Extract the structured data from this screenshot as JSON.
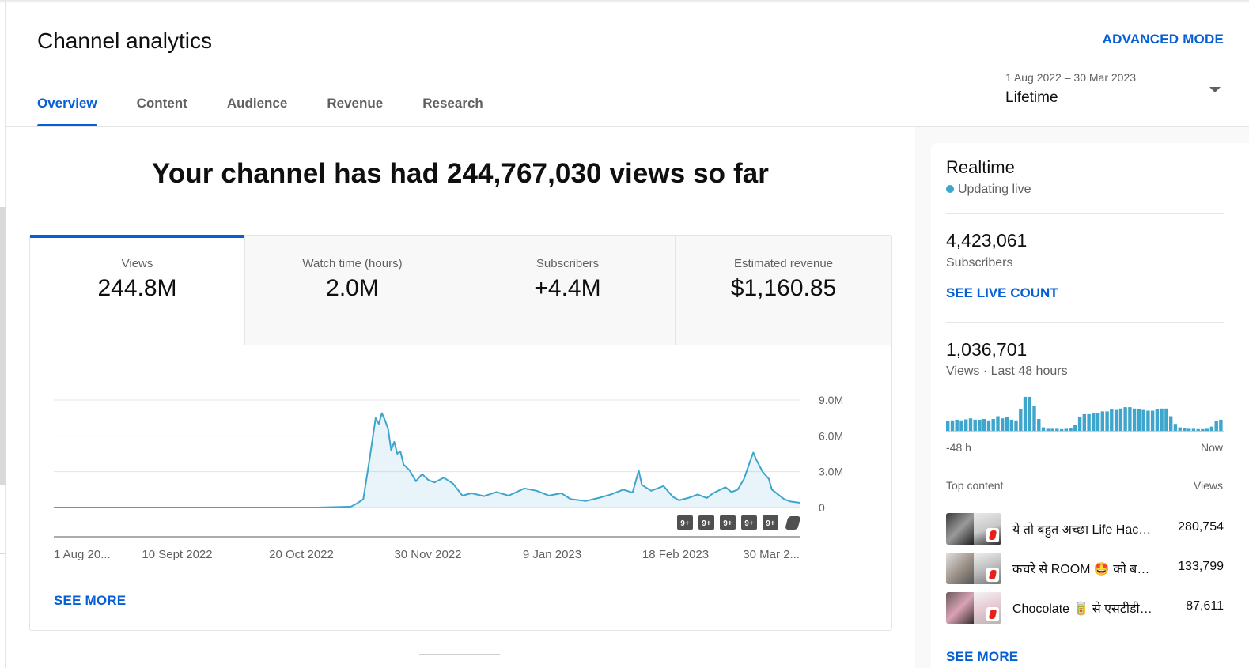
{
  "page": {
    "title": "Channel analytics",
    "advanced_mode": "ADVANCED MODE"
  },
  "tabs": [
    "Overview",
    "Content",
    "Audience",
    "Revenue",
    "Research"
  ],
  "date_range": {
    "range": "1 Aug 2022 – 30 Mar 2023",
    "label": "Lifetime"
  },
  "headline": "Your channel has had 244,767,030 views so far",
  "metrics": [
    {
      "label": "Views",
      "value": "244.8M"
    },
    {
      "label": "Watch time (hours)",
      "value": "2.0M"
    },
    {
      "label": "Subscribers",
      "value": "+4.4M"
    },
    {
      "label": "Estimated revenue",
      "value": "$1,160.85"
    }
  ],
  "chart_data": {
    "type": "area",
    "title": "",
    "ylabel": "",
    "xlabel": "",
    "ylim": [
      0,
      9000000
    ],
    "y_ticks": [
      "9.0M",
      "6.0M",
      "3.0M",
      "0"
    ],
    "x_ticks": [
      "1 Aug 20...",
      "10 Sept 2022",
      "20 Oct 2022",
      "30 Nov 2022",
      "9 Jan 2023",
      "18 Feb 2023",
      "30 Mar 2..."
    ],
    "x_range": [
      "2022-08-01",
      "2023-03-30"
    ],
    "grid": true,
    "color": "#3ea6cc",
    "series": [
      {
        "points": [
          [
            "2022-08-01",
            0
          ],
          [
            "2022-10-25",
            0
          ],
          [
            "2022-10-30",
            30000
          ],
          [
            "2022-11-05",
            70000
          ],
          [
            "2022-11-07",
            350000
          ],
          [
            "2022-11-09",
            700000
          ],
          [
            "2022-11-11",
            4000000
          ],
          [
            "2022-11-13",
            7500000
          ],
          [
            "2022-11-14",
            7000000
          ],
          [
            "2022-11-15",
            7900000
          ],
          [
            "2022-11-16",
            7300000
          ],
          [
            "2022-11-17",
            6600000
          ],
          [
            "2022-11-18",
            4800000
          ],
          [
            "2022-11-19",
            5500000
          ],
          [
            "2022-11-20",
            4500000
          ],
          [
            "2022-11-21",
            4700000
          ],
          [
            "2022-11-22",
            3600000
          ],
          [
            "2022-11-24",
            3100000
          ],
          [
            "2022-11-26",
            2200000
          ],
          [
            "2022-11-28",
            2800000
          ],
          [
            "2022-11-30",
            2300000
          ],
          [
            "2022-12-02",
            2100000
          ],
          [
            "2022-12-05",
            2500000
          ],
          [
            "2022-12-08",
            2000000
          ],
          [
            "2022-12-11",
            1000000
          ],
          [
            "2022-12-14",
            1200000
          ],
          [
            "2022-12-18",
            950000
          ],
          [
            "2022-12-22",
            1300000
          ],
          [
            "2022-12-26",
            1000000
          ],
          [
            "2022-12-31",
            1600000
          ],
          [
            "2023-01-04",
            1400000
          ],
          [
            "2023-01-08",
            1000000
          ],
          [
            "2023-01-12",
            1200000
          ],
          [
            "2023-01-15",
            700000
          ],
          [
            "2023-01-20",
            550000
          ],
          [
            "2023-01-24",
            800000
          ],
          [
            "2023-01-28",
            1100000
          ],
          [
            "2023-02-01",
            1500000
          ],
          [
            "2023-02-04",
            1250000
          ],
          [
            "2023-02-06",
            3100000
          ],
          [
            "2023-02-07",
            1900000
          ],
          [
            "2023-02-10",
            1400000
          ],
          [
            "2023-02-14",
            1800000
          ],
          [
            "2023-02-17",
            900000
          ],
          [
            "2023-02-19",
            600000
          ],
          [
            "2023-02-22",
            800000
          ],
          [
            "2023-02-25",
            1100000
          ],
          [
            "2023-02-28",
            800000
          ],
          [
            "2023-03-02",
            1200000
          ],
          [
            "2023-03-06",
            1700000
          ],
          [
            "2023-03-08",
            1300000
          ],
          [
            "2023-03-10",
            1500000
          ],
          [
            "2023-03-12",
            2400000
          ],
          [
            "2023-03-14",
            3900000
          ],
          [
            "2023-03-15",
            4600000
          ],
          [
            "2023-03-16",
            4000000
          ],
          [
            "2023-03-18",
            3000000
          ],
          [
            "2023-03-20",
            2400000
          ],
          [
            "2023-03-21",
            1500000
          ],
          [
            "2023-03-23",
            1100000
          ],
          [
            "2023-03-25",
            700000
          ],
          [
            "2023-03-27",
            500000
          ],
          [
            "2023-03-30",
            400000
          ]
        ]
      }
    ],
    "annotations": [
      "9+",
      "9+",
      "9+",
      "9+",
      "9+"
    ]
  },
  "see_more": "SEE MORE",
  "realtime": {
    "title": "Realtime",
    "status": "Updating live",
    "subscribers_count": "4,423,061",
    "subscribers_label": "Subscribers",
    "see_live_count": "SEE LIVE COUNT",
    "views_count": "1,036,701",
    "views_label": "Views · Last 48 hours",
    "hourly_views_relative": [
      0.28,
      0.3,
      0.32,
      0.3,
      0.33,
      0.36,
      0.32,
      0.32,
      0.34,
      0.3,
      0.34,
      0.42,
      0.36,
      0.4,
      0.32,
      0.3,
      0.62,
      0.98,
      0.98,
      0.72,
      0.34,
      0.1,
      0.06,
      0.06,
      0.06,
      0.05,
      0.06,
      0.08,
      0.18,
      0.4,
      0.48,
      0.48,
      0.52,
      0.52,
      0.56,
      0.56,
      0.62,
      0.6,
      0.64,
      0.68,
      0.68,
      0.64,
      0.62,
      0.6,
      0.58,
      0.58,
      0.62,
      0.64,
      0.64,
      0.42,
      0.2,
      0.1,
      0.08,
      0.06,
      0.06,
      0.05,
      0.05,
      0.06,
      0.12,
      0.28,
      0.32
    ],
    "mini_start": "-48 h",
    "mini_end": "Now",
    "top_content_label": "Top content",
    "top_content_views_label": "Views",
    "top_content": [
      {
        "title": "ये तो बहुत अच्छा Life Hack है",
        "views": "280,754"
      },
      {
        "title": "कचरे से ROOM 🤩 को बना दिया",
        "views": "133,799"
      },
      {
        "title": "Chocolate 🥫 से एसटीडी बना दिया",
        "views": "87,611"
      }
    ],
    "see_more": "SEE MORE"
  },
  "colors": {
    "accent": "#065fd4",
    "chart": "#3ea6cc",
    "text_secondary": "#606060"
  }
}
